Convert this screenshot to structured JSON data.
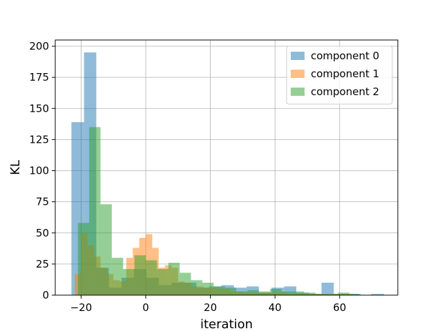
{
  "chart_data": {
    "type": "histogram",
    "xlabel": "iteration",
    "ylabel": "KL",
    "xlim": [
      -28,
      78
    ],
    "ylim": [
      0,
      205
    ],
    "xticks": [
      -20,
      0,
      20,
      40,
      60
    ],
    "yticks": [
      0,
      25,
      50,
      75,
      100,
      125,
      150,
      175,
      200
    ],
    "grid": true,
    "legend_position": "top-right",
    "series": [
      {
        "name": "component 0",
        "color": "#1f77b4",
        "bins": [
          {
            "x0": -23.0,
            "x1": -19.1,
            "value": 139
          },
          {
            "x0": -19.1,
            "x1": -15.3,
            "value": 195
          },
          {
            "x0": -15.3,
            "x1": -11.4,
            "value": 22
          },
          {
            "x0": -11.4,
            "x1": -7.5,
            "value": 6
          },
          {
            "x0": -7.5,
            "x1": -3.7,
            "value": 14
          },
          {
            "x0": -3.7,
            "x1": 0.2,
            "value": 21
          },
          {
            "x0": 0.2,
            "x1": 4.1,
            "value": 14
          },
          {
            "x0": 4.1,
            "x1": 8.0,
            "value": 8
          },
          {
            "x0": 8.0,
            "x1": 11.8,
            "value": 10
          },
          {
            "x0": 11.8,
            "x1": 15.7,
            "value": 10
          },
          {
            "x0": 15.7,
            "x1": 19.6,
            "value": 6
          },
          {
            "x0": 19.6,
            "x1": 23.4,
            "value": 7
          },
          {
            "x0": 23.4,
            "x1": 27.3,
            "value": 8
          },
          {
            "x0": 27.3,
            "x1": 31.2,
            "value": 6
          },
          {
            "x0": 31.2,
            "x1": 35.0,
            "value": 7
          },
          {
            "x0": 35.0,
            "x1": 38.9,
            "value": 2
          },
          {
            "x0": 38.9,
            "x1": 42.8,
            "value": 6
          },
          {
            "x0": 42.8,
            "x1": 46.6,
            "value": 7
          },
          {
            "x0": 46.6,
            "x1": 50.5,
            "value": 2
          },
          {
            "x0": 50.5,
            "x1": 54.4,
            "value": 1
          },
          {
            "x0": 54.4,
            "x1": 58.2,
            "value": 10
          },
          {
            "x0": 58.2,
            "x1": 62.1,
            "value": 1
          },
          {
            "x0": 62.1,
            "x1": 66.0,
            "value": 1
          },
          {
            "x0": 66.0,
            "x1": 69.8,
            "value": 0
          },
          {
            "x0": 69.8,
            "x1": 73.7,
            "value": 1
          }
        ]
      },
      {
        "name": "component 1",
        "color": "#ff7f0e",
        "bins": [
          {
            "x0": -22.0,
            "x1": -20.0,
            "value": 17
          },
          {
            "x0": -20.0,
            "x1": -18.0,
            "value": 50
          },
          {
            "x0": -18.0,
            "x1": -16.0,
            "value": 40
          },
          {
            "x0": -16.0,
            "x1": -14.0,
            "value": 31
          },
          {
            "x0": -14.0,
            "x1": -12.0,
            "value": 22
          },
          {
            "x0": -12.0,
            "x1": -10.0,
            "value": 17
          },
          {
            "x0": -10.0,
            "x1": -8.0,
            "value": 12
          },
          {
            "x0": -8.0,
            "x1": -6.0,
            "value": 11
          },
          {
            "x0": -6.0,
            "x1": -4.0,
            "value": 30
          },
          {
            "x0": -4.0,
            "x1": -2.0,
            "value": 38
          },
          {
            "x0": -2.0,
            "x1": 0.0,
            "value": 46
          },
          {
            "x0": 0.0,
            "x1": 2.0,
            "value": 49
          },
          {
            "x0": 2.0,
            "x1": 4.0,
            "value": 38
          },
          {
            "x0": 4.0,
            "x1": 6.0,
            "value": 22
          },
          {
            "x0": 6.0,
            "x1": 8.0,
            "value": 24
          },
          {
            "x0": 8.0,
            "x1": 10.0,
            "value": 22
          },
          {
            "x0": 10.0,
            "x1": 12.0,
            "value": 11
          },
          {
            "x0": 12.0,
            "x1": 14.0,
            "value": 10
          },
          {
            "x0": 14.0,
            "x1": 18.0,
            "value": 7
          },
          {
            "x0": 18.0,
            "x1": 22.0,
            "value": 6
          },
          {
            "x0": 22.0,
            "x1": 26.0,
            "value": 5
          },
          {
            "x0": 26.0,
            "x1": 30.0,
            "value": 3
          },
          {
            "x0": 30.0,
            "x1": 36.0,
            "value": 2
          },
          {
            "x0": 36.0,
            "x1": 44.0,
            "value": 2
          },
          {
            "x0": 44.0,
            "x1": 52.0,
            "value": 1
          },
          {
            "x0": 52.0,
            "x1": 64.0,
            "value": 1
          }
        ]
      },
      {
        "name": "component 2",
        "color": "#2ca02c",
        "bins": [
          {
            "x0": -21.0,
            "x1": -17.5,
            "value": 58
          },
          {
            "x0": -17.5,
            "x1": -14.0,
            "value": 135
          },
          {
            "x0": -14.0,
            "x1": -10.5,
            "value": 73
          },
          {
            "x0": -10.5,
            "x1": -7.0,
            "value": 30
          },
          {
            "x0": -7.0,
            "x1": -3.5,
            "value": 21
          },
          {
            "x0": -3.5,
            "x1": 0.0,
            "value": 32
          },
          {
            "x0": 0.0,
            "x1": 3.5,
            "value": 28
          },
          {
            "x0": 3.5,
            "x1": 7.0,
            "value": 21
          },
          {
            "x0": 7.0,
            "x1": 10.5,
            "value": 26
          },
          {
            "x0": 10.5,
            "x1": 14.0,
            "value": 18
          },
          {
            "x0": 14.0,
            "x1": 17.5,
            "value": 12
          },
          {
            "x0": 17.5,
            "x1": 21.0,
            "value": 10
          },
          {
            "x0": 21.0,
            "x1": 24.5,
            "value": 7
          },
          {
            "x0": 24.5,
            "x1": 28.0,
            "value": 6
          },
          {
            "x0": 28.0,
            "x1": 31.5,
            "value": 3
          },
          {
            "x0": 31.5,
            "x1": 35.0,
            "value": 4
          },
          {
            "x0": 35.0,
            "x1": 38.5,
            "value": 3
          },
          {
            "x0": 38.5,
            "x1": 42.0,
            "value": 5
          },
          {
            "x0": 42.0,
            "x1": 45.5,
            "value": 3
          },
          {
            "x0": 45.5,
            "x1": 49.0,
            "value": 3
          },
          {
            "x0": 49.0,
            "x1": 52.5,
            "value": 2
          },
          {
            "x0": 52.5,
            "x1": 56.0,
            "value": 1
          },
          {
            "x0": 56.0,
            "x1": 59.5,
            "value": 1
          },
          {
            "x0": 59.5,
            "x1": 63.0,
            "value": 2
          },
          {
            "x0": 63.0,
            "x1": 66.5,
            "value": 1
          }
        ]
      }
    ]
  }
}
